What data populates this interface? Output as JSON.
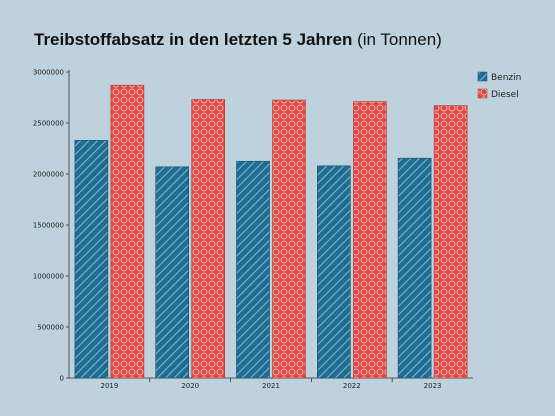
{
  "title": {
    "main": "Treibstoffabsatz in den letzten 5 Jahren",
    "unit": "(in Tonnen)"
  },
  "colors": {
    "benzin": "#1f6d93",
    "diesel": "#e04844",
    "background": "#bdd2dd"
  },
  "chart_data": {
    "type": "bar",
    "title": "Treibstoffabsatz in den letzten 5 Jahren (in Tonnen)",
    "categories": [
      "2019",
      "2020",
      "2021",
      "2022",
      "2023"
    ],
    "series": [
      {
        "name": "Benzin",
        "values": [
          2330000,
          2070000,
          2125000,
          2080000,
          2155000
        ],
        "color": "#1f6d93",
        "pattern": "diagonal-hatch"
      },
      {
        "name": "Diesel",
        "values": [
          2870000,
          2730000,
          2725000,
          2710000,
          2670000
        ],
        "color": "#e04844",
        "pattern": "circles"
      }
    ],
    "yticks": [
      0,
      500000,
      1000000,
      1500000,
      2000000,
      2500000,
      3000000
    ],
    "ytick_labels": [
      "0",
      "500000",
      "1000000",
      "1500000",
      "2000000",
      "2500000",
      "3000000"
    ],
    "ylim": [
      0,
      3000000
    ],
    "xlabel": "",
    "ylabel": "",
    "legend": "top-right",
    "grid": false
  }
}
